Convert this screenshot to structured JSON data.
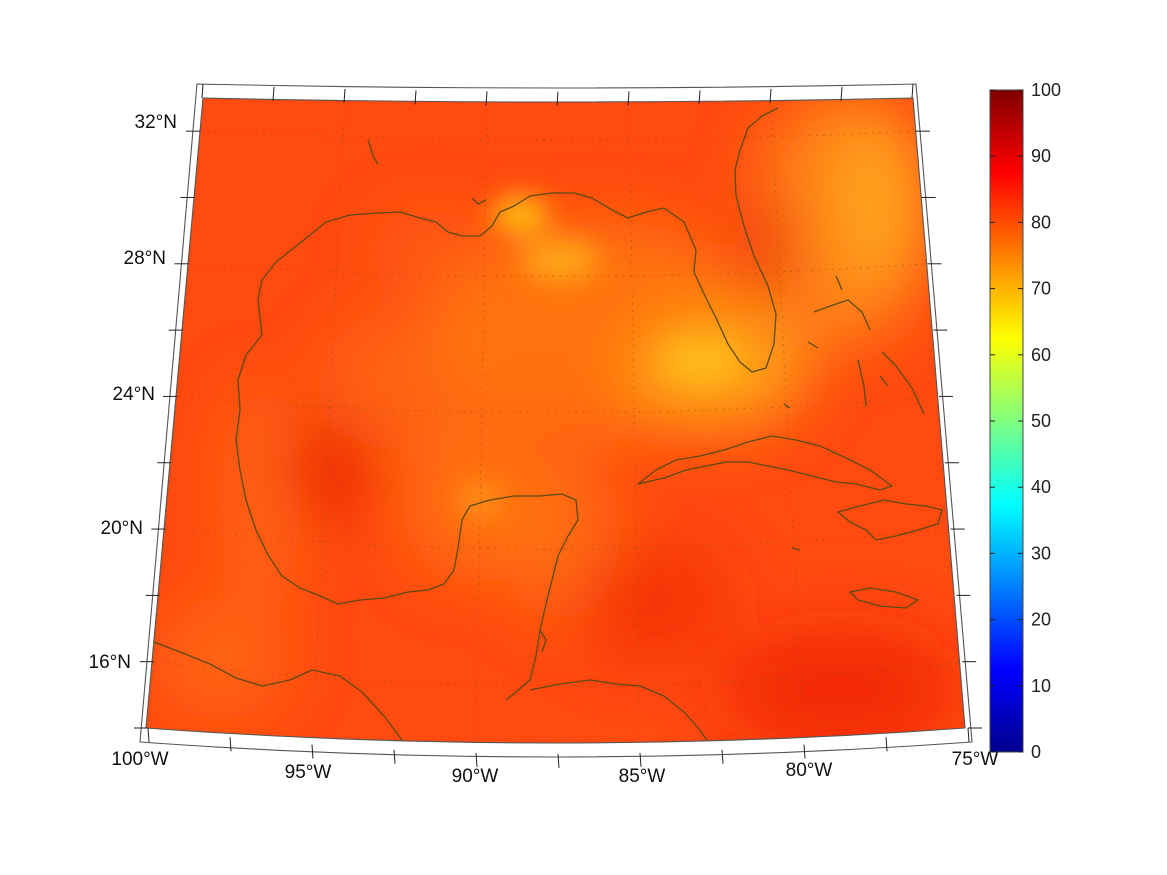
{
  "map": {
    "projection": "conic",
    "lon_range": [
      -100,
      -75
    ],
    "lat_range": [
      14,
      33
    ],
    "lon_labels": [
      {
        "value": -100,
        "label": "100°W"
      },
      {
        "value": -95,
        "label": "95°W"
      },
      {
        "value": -90,
        "label": "90°W"
      },
      {
        "value": -85,
        "label": "85°W"
      },
      {
        "value": -80,
        "label": "80°W"
      },
      {
        "value": -75,
        "label": "75°W"
      }
    ],
    "lat_labels": [
      {
        "value": 32,
        "label": "32°N"
      },
      {
        "value": 28,
        "label": "28°N"
      },
      {
        "value": 24,
        "label": "24°N"
      },
      {
        "value": 20,
        "label": "20°N"
      },
      {
        "value": 16,
        "label": "16°N"
      }
    ],
    "field_colors": {
      "base": "#ff4a10",
      "warm_patch": "#ff7a12",
      "yellow_patch": "#ffc21a",
      "hot_patch": "#e81808",
      "coastline": "#5a4a14"
    },
    "grid": true
  },
  "colorbar": {
    "colormap": "jet",
    "min": 0,
    "max": 100,
    "ticks": [
      "0",
      "10",
      "20",
      "30",
      "40",
      "50",
      "60",
      "70",
      "80",
      "90",
      "100"
    ]
  }
}
